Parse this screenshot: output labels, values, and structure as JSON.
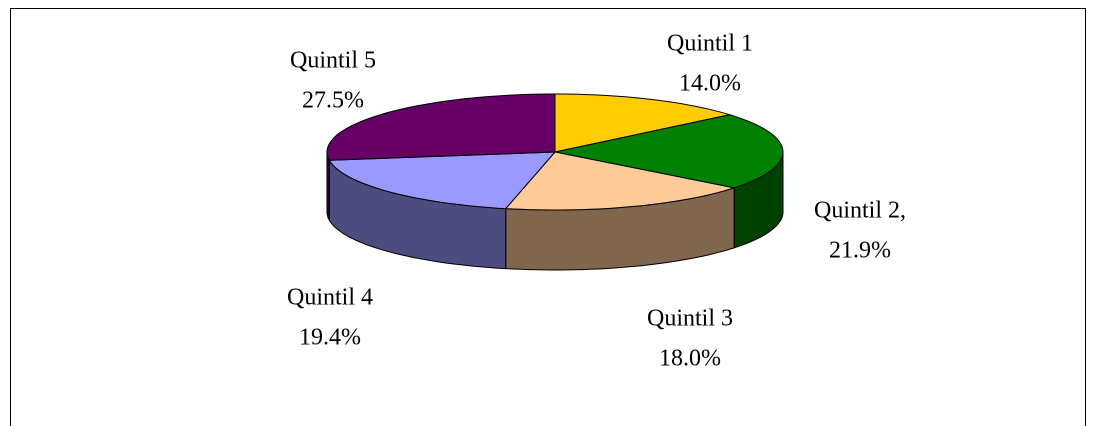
{
  "chart_data": {
    "type": "pie3d",
    "categories": [
      "Quintil 1",
      "Quintil 2,",
      "Quintil 3",
      "Quintil 4",
      "Quintil 5"
    ],
    "values": [
      14.0,
      21.9,
      18.0,
      19.4,
      27.5
    ],
    "value_labels": [
      "14.0%",
      "21.9%",
      "18.0%",
      "19.4%",
      "27.5%"
    ],
    "colors": [
      "#ffcc00",
      "#008000",
      "#ffcc99",
      "#9999ff",
      "#660066"
    ]
  }
}
